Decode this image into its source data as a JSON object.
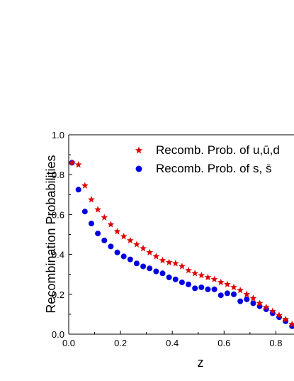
{
  "chart_data": {
    "type": "scatter",
    "xlabel": "z",
    "ylabel": "Recombination Probabilities",
    "xlim": [
      0,
      0.87
    ],
    "ylim": [
      0,
      1.0
    ],
    "x_ticks": [
      "0.0",
      "0.2",
      "0.4",
      "0.6",
      "0.8"
    ],
    "y_ticks": [
      "0.0",
      "0.2",
      "0.4",
      "0.6",
      "0.8",
      "1.0"
    ],
    "grid": false,
    "legend_position": "top-right",
    "series": [
      {
        "name": "Recomb. Prob. of u,ū,d",
        "marker": "star",
        "color": "#e00000",
        "x": [
          0.0125,
          0.0375,
          0.0625,
          0.0875,
          0.1125,
          0.1375,
          0.1625,
          0.1875,
          0.2125,
          0.2375,
          0.2625,
          0.2875,
          0.3125,
          0.3375,
          0.3625,
          0.3875,
          0.4125,
          0.4375,
          0.4625,
          0.4875,
          0.5125,
          0.5375,
          0.5625,
          0.5875,
          0.6125,
          0.6375,
          0.6625,
          0.6875,
          0.7125,
          0.7375,
          0.7625,
          0.7875,
          0.8125,
          0.8375,
          0.8625
        ],
        "y": [
          0.86,
          0.85,
          0.745,
          0.675,
          0.625,
          0.585,
          0.55,
          0.515,
          0.49,
          0.47,
          0.45,
          0.43,
          0.41,
          0.39,
          0.37,
          0.36,
          0.355,
          0.34,
          0.32,
          0.305,
          0.295,
          0.285,
          0.275,
          0.26,
          0.25,
          0.235,
          0.22,
          0.2,
          0.18,
          0.155,
          0.135,
          0.115,
          0.095,
          0.075,
          0.05
        ]
      },
      {
        "name": "Recomb. Prob. of s, s̄",
        "marker": "circle",
        "color": "#0000e0",
        "x": [
          0.0125,
          0.0375,
          0.0625,
          0.0875,
          0.1125,
          0.1375,
          0.1625,
          0.1875,
          0.2125,
          0.2375,
          0.2625,
          0.2875,
          0.3125,
          0.3375,
          0.3625,
          0.3875,
          0.4125,
          0.4375,
          0.4625,
          0.4875,
          0.5125,
          0.5375,
          0.5625,
          0.5875,
          0.6125,
          0.6375,
          0.6625,
          0.6875,
          0.7125,
          0.7375,
          0.7625,
          0.7875,
          0.8125,
          0.8375,
          0.8625
        ],
        "y": [
          0.86,
          0.725,
          0.615,
          0.555,
          0.505,
          0.47,
          0.44,
          0.41,
          0.39,
          0.375,
          0.355,
          0.34,
          0.33,
          0.315,
          0.305,
          0.285,
          0.275,
          0.26,
          0.25,
          0.23,
          0.235,
          0.225,
          0.225,
          0.195,
          0.205,
          0.2,
          0.165,
          0.175,
          0.155,
          0.14,
          0.125,
          0.105,
          0.085,
          0.065,
          0.04
        ]
      }
    ]
  }
}
